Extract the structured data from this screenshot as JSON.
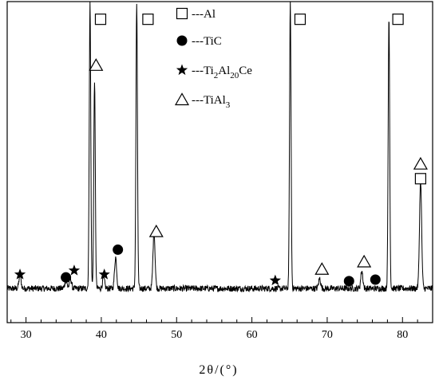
{
  "chart_data": {
    "type": "line",
    "title": "",
    "xlabel": "2θ/(°)",
    "ylabel": "",
    "xlim": [
      27.5,
      84
    ],
    "ylim": [
      0,
      100
    ],
    "xticks": [
      30,
      40,
      50,
      60,
      70,
      80
    ],
    "grid": false,
    "legend_position": "top-center",
    "legend": [
      {
        "marker": "open-square",
        "label": "---Al"
      },
      {
        "marker": "filled-circle",
        "label": "---TiC"
      },
      {
        "marker": "star",
        "label_parts": [
          "---Ti",
          "2",
          "Al",
          "20",
          "Ce"
        ]
      },
      {
        "marker": "open-triangle",
        "label_parts": [
          "---TiAl",
          "3"
        ]
      }
    ],
    "peaks": [
      {
        "x": 29.2,
        "y": 4.6
      },
      {
        "x": 35.3,
        "y": 3.0
      },
      {
        "x": 35.9,
        "y": 3.5
      },
      {
        "x": 38.5,
        "y": 100
      },
      {
        "x": 39.1,
        "y": 73.2
      },
      {
        "x": 40.3,
        "y": 3.7
      },
      {
        "x": 41.9,
        "y": 11.0
      },
      {
        "x": 44.7,
        "y": 100
      },
      {
        "x": 47.0,
        "y": 19.7
      },
      {
        "x": 65.1,
        "y": 100
      },
      {
        "x": 69.0,
        "y": 3.5
      },
      {
        "x": 74.6,
        "y": 6.2
      },
      {
        "x": 78.2,
        "y": 95.4
      },
      {
        "x": 82.4,
        "y": 37.9
      }
    ],
    "markers": [
      {
        "type": "star",
        "x": 29.2,
        "y": 7.1
      },
      {
        "type": "filled-circle",
        "x": 35.3,
        "y": 6.1
      },
      {
        "type": "star",
        "x": 36.4,
        "y": 8.5
      },
      {
        "type": "open-triangle",
        "x": 39.3,
        "y": 80.5
      },
      {
        "type": "open-square",
        "x": 39.9,
        "y": 96.6
      },
      {
        "type": "star",
        "x": 40.4,
        "y": 7.1
      },
      {
        "type": "filled-circle",
        "x": 42.2,
        "y": 15.8
      },
      {
        "type": "open-square",
        "x": 46.2,
        "y": 96.6
      },
      {
        "type": "open-triangle",
        "x": 47.3,
        "y": 22.2
      },
      {
        "type": "star",
        "x": 63.1,
        "y": 5.0
      },
      {
        "type": "open-square",
        "x": 66.4,
        "y": 96.6
      },
      {
        "type": "open-triangle",
        "x": 69.3,
        "y": 9.0
      },
      {
        "type": "filled-circle",
        "x": 72.9,
        "y": 4.8
      },
      {
        "type": "open-triangle",
        "x": 74.9,
        "y": 11.6
      },
      {
        "type": "filled-circle",
        "x": 76.4,
        "y": 5.3
      },
      {
        "type": "open-square",
        "x": 79.4,
        "y": 96.6
      },
      {
        "type": "open-triangle",
        "x": 82.4,
        "y": 45.9
      },
      {
        "type": "open-square",
        "x": 82.4,
        "y": 40.7
      }
    ]
  }
}
